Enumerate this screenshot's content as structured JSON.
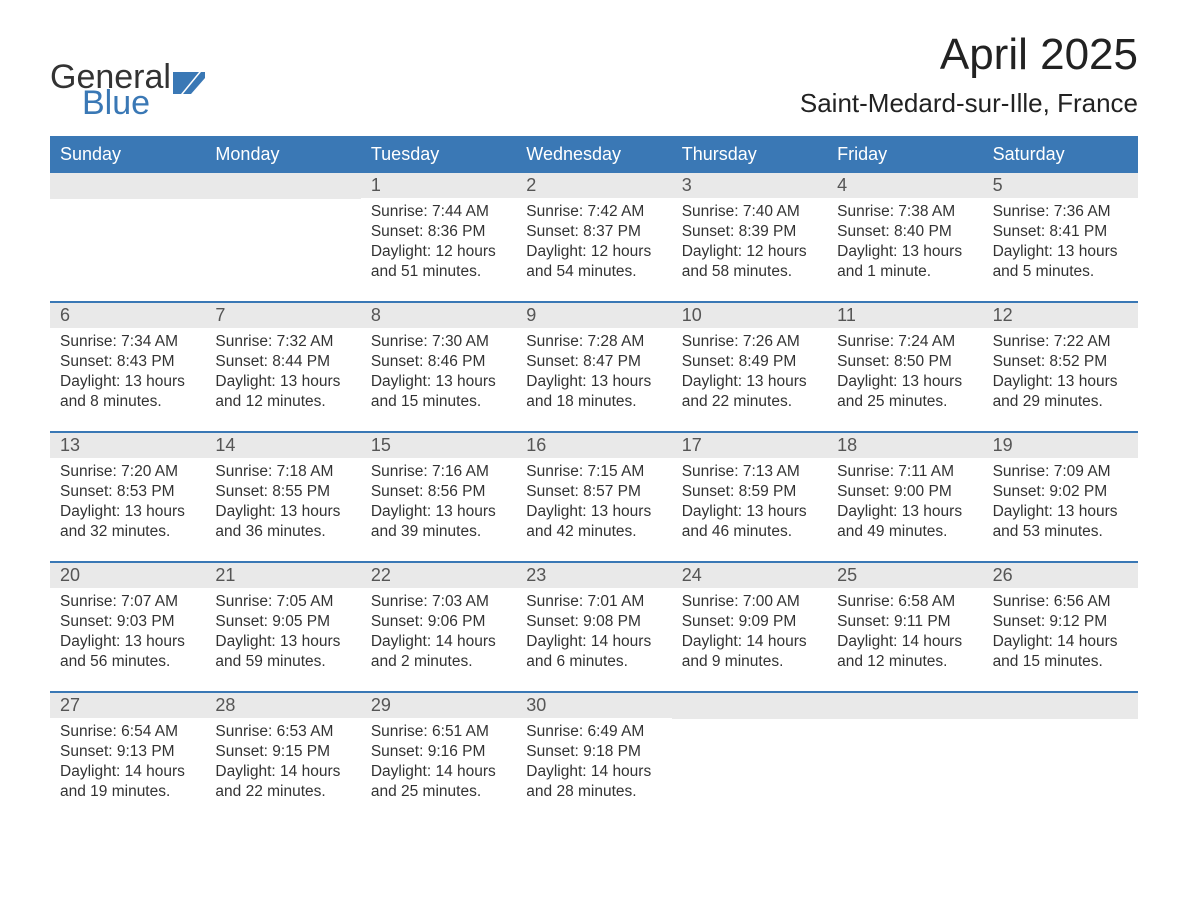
{
  "logo": {
    "text1": "General",
    "text2": "Blue",
    "icon_color": "#3a78b5"
  },
  "title": "April 2025",
  "location": "Saint-Medard-sur-Ille, France",
  "colors": {
    "header_bg": "#3a78b5",
    "header_text": "#ffffff",
    "daynum_bg": "#e9e9e9",
    "daynum_text": "#555555",
    "body_text": "#333333",
    "rule": "#3a78b5"
  },
  "weekdays": [
    "Sunday",
    "Monday",
    "Tuesday",
    "Wednesday",
    "Thursday",
    "Friday",
    "Saturday"
  ],
  "weeks": [
    [
      {
        "day": "",
        "sunrise": "",
        "sunset": "",
        "daylight1": "",
        "daylight2": ""
      },
      {
        "day": "",
        "sunrise": "",
        "sunset": "",
        "daylight1": "",
        "daylight2": ""
      },
      {
        "day": "1",
        "sunrise": "Sunrise: 7:44 AM",
        "sunset": "Sunset: 8:36 PM",
        "daylight1": "Daylight: 12 hours",
        "daylight2": "and 51 minutes."
      },
      {
        "day": "2",
        "sunrise": "Sunrise: 7:42 AM",
        "sunset": "Sunset: 8:37 PM",
        "daylight1": "Daylight: 12 hours",
        "daylight2": "and 54 minutes."
      },
      {
        "day": "3",
        "sunrise": "Sunrise: 7:40 AM",
        "sunset": "Sunset: 8:39 PM",
        "daylight1": "Daylight: 12 hours",
        "daylight2": "and 58 minutes."
      },
      {
        "day": "4",
        "sunrise": "Sunrise: 7:38 AM",
        "sunset": "Sunset: 8:40 PM",
        "daylight1": "Daylight: 13 hours",
        "daylight2": "and 1 minute."
      },
      {
        "day": "5",
        "sunrise": "Sunrise: 7:36 AM",
        "sunset": "Sunset: 8:41 PM",
        "daylight1": "Daylight: 13 hours",
        "daylight2": "and 5 minutes."
      }
    ],
    [
      {
        "day": "6",
        "sunrise": "Sunrise: 7:34 AM",
        "sunset": "Sunset: 8:43 PM",
        "daylight1": "Daylight: 13 hours",
        "daylight2": "and 8 minutes."
      },
      {
        "day": "7",
        "sunrise": "Sunrise: 7:32 AM",
        "sunset": "Sunset: 8:44 PM",
        "daylight1": "Daylight: 13 hours",
        "daylight2": "and 12 minutes."
      },
      {
        "day": "8",
        "sunrise": "Sunrise: 7:30 AM",
        "sunset": "Sunset: 8:46 PM",
        "daylight1": "Daylight: 13 hours",
        "daylight2": "and 15 minutes."
      },
      {
        "day": "9",
        "sunrise": "Sunrise: 7:28 AM",
        "sunset": "Sunset: 8:47 PM",
        "daylight1": "Daylight: 13 hours",
        "daylight2": "and 18 minutes."
      },
      {
        "day": "10",
        "sunrise": "Sunrise: 7:26 AM",
        "sunset": "Sunset: 8:49 PM",
        "daylight1": "Daylight: 13 hours",
        "daylight2": "and 22 minutes."
      },
      {
        "day": "11",
        "sunrise": "Sunrise: 7:24 AM",
        "sunset": "Sunset: 8:50 PM",
        "daylight1": "Daylight: 13 hours",
        "daylight2": "and 25 minutes."
      },
      {
        "day": "12",
        "sunrise": "Sunrise: 7:22 AM",
        "sunset": "Sunset: 8:52 PM",
        "daylight1": "Daylight: 13 hours",
        "daylight2": "and 29 minutes."
      }
    ],
    [
      {
        "day": "13",
        "sunrise": "Sunrise: 7:20 AM",
        "sunset": "Sunset: 8:53 PM",
        "daylight1": "Daylight: 13 hours",
        "daylight2": "and 32 minutes."
      },
      {
        "day": "14",
        "sunrise": "Sunrise: 7:18 AM",
        "sunset": "Sunset: 8:55 PM",
        "daylight1": "Daylight: 13 hours",
        "daylight2": "and 36 minutes."
      },
      {
        "day": "15",
        "sunrise": "Sunrise: 7:16 AM",
        "sunset": "Sunset: 8:56 PM",
        "daylight1": "Daylight: 13 hours",
        "daylight2": "and 39 minutes."
      },
      {
        "day": "16",
        "sunrise": "Sunrise: 7:15 AM",
        "sunset": "Sunset: 8:57 PM",
        "daylight1": "Daylight: 13 hours",
        "daylight2": "and 42 minutes."
      },
      {
        "day": "17",
        "sunrise": "Sunrise: 7:13 AM",
        "sunset": "Sunset: 8:59 PM",
        "daylight1": "Daylight: 13 hours",
        "daylight2": "and 46 minutes."
      },
      {
        "day": "18",
        "sunrise": "Sunrise: 7:11 AM",
        "sunset": "Sunset: 9:00 PM",
        "daylight1": "Daylight: 13 hours",
        "daylight2": "and 49 minutes."
      },
      {
        "day": "19",
        "sunrise": "Sunrise: 7:09 AM",
        "sunset": "Sunset: 9:02 PM",
        "daylight1": "Daylight: 13 hours",
        "daylight2": "and 53 minutes."
      }
    ],
    [
      {
        "day": "20",
        "sunrise": "Sunrise: 7:07 AM",
        "sunset": "Sunset: 9:03 PM",
        "daylight1": "Daylight: 13 hours",
        "daylight2": "and 56 minutes."
      },
      {
        "day": "21",
        "sunrise": "Sunrise: 7:05 AM",
        "sunset": "Sunset: 9:05 PM",
        "daylight1": "Daylight: 13 hours",
        "daylight2": "and 59 minutes."
      },
      {
        "day": "22",
        "sunrise": "Sunrise: 7:03 AM",
        "sunset": "Sunset: 9:06 PM",
        "daylight1": "Daylight: 14 hours",
        "daylight2": "and 2 minutes."
      },
      {
        "day": "23",
        "sunrise": "Sunrise: 7:01 AM",
        "sunset": "Sunset: 9:08 PM",
        "daylight1": "Daylight: 14 hours",
        "daylight2": "and 6 minutes."
      },
      {
        "day": "24",
        "sunrise": "Sunrise: 7:00 AM",
        "sunset": "Sunset: 9:09 PM",
        "daylight1": "Daylight: 14 hours",
        "daylight2": "and 9 minutes."
      },
      {
        "day": "25",
        "sunrise": "Sunrise: 6:58 AM",
        "sunset": "Sunset: 9:11 PM",
        "daylight1": "Daylight: 14 hours",
        "daylight2": "and 12 minutes."
      },
      {
        "day": "26",
        "sunrise": "Sunrise: 6:56 AM",
        "sunset": "Sunset: 9:12 PM",
        "daylight1": "Daylight: 14 hours",
        "daylight2": "and 15 minutes."
      }
    ],
    [
      {
        "day": "27",
        "sunrise": "Sunrise: 6:54 AM",
        "sunset": "Sunset: 9:13 PM",
        "daylight1": "Daylight: 14 hours",
        "daylight2": "and 19 minutes."
      },
      {
        "day": "28",
        "sunrise": "Sunrise: 6:53 AM",
        "sunset": "Sunset: 9:15 PM",
        "daylight1": "Daylight: 14 hours",
        "daylight2": "and 22 minutes."
      },
      {
        "day": "29",
        "sunrise": "Sunrise: 6:51 AM",
        "sunset": "Sunset: 9:16 PM",
        "daylight1": "Daylight: 14 hours",
        "daylight2": "and 25 minutes."
      },
      {
        "day": "30",
        "sunrise": "Sunrise: 6:49 AM",
        "sunset": "Sunset: 9:18 PM",
        "daylight1": "Daylight: 14 hours",
        "daylight2": "and 28 minutes."
      },
      {
        "day": "",
        "sunrise": "",
        "sunset": "",
        "daylight1": "",
        "daylight2": ""
      },
      {
        "day": "",
        "sunrise": "",
        "sunset": "",
        "daylight1": "",
        "daylight2": ""
      },
      {
        "day": "",
        "sunrise": "",
        "sunset": "",
        "daylight1": "",
        "daylight2": ""
      }
    ]
  ]
}
